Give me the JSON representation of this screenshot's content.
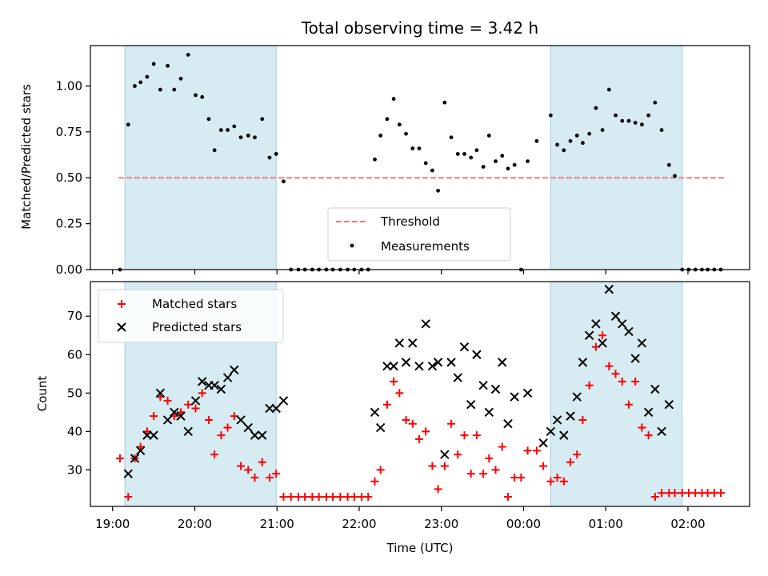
{
  "chart_data": [
    {
      "type": "scatter",
      "title": "Total observing time = 3.42 h",
      "xlabel": "",
      "ylabel": "Matched/Predicted stars",
      "ylim": [
        0,
        1.22
      ],
      "yticks": [
        "0.00",
        "0.25",
        "0.50",
        "0.75",
        "1.00"
      ],
      "shaded_spans": [
        [
          19.15,
          20.99
        ],
        [
          24.33,
          25.93
        ]
      ],
      "threshold": {
        "name": "Threshold",
        "y": 0.5,
        "x": [
          19.07,
          26.45
        ],
        "color": "#f08080"
      },
      "legend": {
        "placement": "lower-center",
        "entries": [
          "Threshold",
          "Measurements"
        ]
      },
      "series": [
        {
          "name": "Measurements",
          "color": "#000000",
          "points": [
            [
              19.09,
              0.0
            ],
            [
              19.19,
              0.79
            ],
            [
              19.27,
              1.0
            ],
            [
              19.34,
              1.02
            ],
            [
              19.42,
              1.05
            ],
            [
              19.5,
              1.12
            ],
            [
              19.58,
              0.98
            ],
            [
              19.67,
              1.11
            ],
            [
              19.75,
              0.98
            ],
            [
              19.83,
              1.04
            ],
            [
              19.92,
              1.17
            ],
            [
              20.01,
              0.95
            ],
            [
              20.09,
              0.94
            ],
            [
              20.17,
              0.82
            ],
            [
              20.24,
              0.65
            ],
            [
              20.32,
              0.76
            ],
            [
              20.4,
              0.76
            ],
            [
              20.48,
              0.78
            ],
            [
              20.56,
              0.72
            ],
            [
              20.65,
              0.73
            ],
            [
              20.73,
              0.72
            ],
            [
              20.82,
              0.82
            ],
            [
              20.91,
              0.61
            ],
            [
              20.99,
              0.63
            ],
            [
              21.08,
              0.48
            ],
            [
              21.17,
              0.0
            ],
            [
              21.26,
              0.0
            ],
            [
              21.34,
              0.0
            ],
            [
              21.43,
              0.0
            ],
            [
              21.51,
              0.0
            ],
            [
              21.6,
              0.0
            ],
            [
              21.68,
              0.0
            ],
            [
              21.77,
              0.0
            ],
            [
              21.86,
              0.0
            ],
            [
              21.94,
              0.0
            ],
            [
              22.03,
              0.0
            ],
            [
              22.11,
              0.0
            ],
            [
              22.19,
              0.6
            ],
            [
              22.26,
              0.73
            ],
            [
              22.34,
              0.82
            ],
            [
              22.42,
              0.93
            ],
            [
              22.49,
              0.79
            ],
            [
              22.57,
              0.74
            ],
            [
              22.65,
              0.66
            ],
            [
              22.73,
              0.66
            ],
            [
              22.81,
              0.58
            ],
            [
              22.89,
              0.54
            ],
            [
              22.96,
              0.43
            ],
            [
              23.04,
              0.91
            ],
            [
              23.12,
              0.72
            ],
            [
              23.2,
              0.63
            ],
            [
              23.28,
              0.63
            ],
            [
              23.36,
              0.61
            ],
            [
              23.43,
              0.65
            ],
            [
              23.51,
              0.56
            ],
            [
              23.58,
              0.73
            ],
            [
              23.66,
              0.59
            ],
            [
              23.74,
              0.62
            ],
            [
              23.81,
              0.55
            ],
            [
              23.89,
              0.57
            ],
            [
              23.97,
              0.0
            ],
            [
              24.05,
              0.59
            ],
            [
              24.16,
              0.7
            ],
            [
              24.33,
              0.84
            ],
            [
              24.41,
              0.68
            ],
            [
              24.49,
              0.65
            ],
            [
              24.57,
              0.7
            ],
            [
              24.65,
              0.73
            ],
            [
              24.72,
              0.69
            ],
            [
              24.8,
              0.74
            ],
            [
              24.88,
              0.88
            ],
            [
              24.96,
              0.76
            ],
            [
              25.04,
              0.98
            ],
            [
              25.12,
              0.84
            ],
            [
              25.2,
              0.81
            ],
            [
              25.28,
              0.81
            ],
            [
              25.36,
              0.8
            ],
            [
              25.44,
              0.79
            ],
            [
              25.52,
              0.84
            ],
            [
              25.6,
              0.91
            ],
            [
              25.68,
              0.76
            ],
            [
              25.77,
              0.57
            ],
            [
              25.84,
              0.51
            ],
            [
              25.93,
              0.0
            ],
            [
              26.01,
              0.0
            ],
            [
              26.09,
              0.0
            ],
            [
              26.17,
              0.0
            ],
            [
              26.24,
              0.0
            ],
            [
              26.32,
              0.0
            ],
            [
              26.4,
              0.0
            ]
          ]
        }
      ]
    },
    {
      "type": "scatter",
      "title": "",
      "xlabel": "Time (UTC)",
      "ylabel": "Count",
      "ylim": [
        20.5,
        79
      ],
      "yticks": [
        "30",
        "40",
        "50",
        "60",
        "70"
      ],
      "xticks": [
        "19:00",
        "20:00",
        "21:00",
        "22:00",
        "23:00",
        "00:00",
        "01:00",
        "02:00"
      ],
      "shaded_spans": [
        [
          19.15,
          20.99
        ],
        [
          24.33,
          25.93
        ]
      ],
      "legend": {
        "placement": "upper-left",
        "entries": [
          "Matched stars",
          "Predicted stars"
        ]
      },
      "series": [
        {
          "name": "Matched stars",
          "color": "#ff0000",
          "marker": "plus",
          "points": [
            [
              19.09,
              33
            ],
            [
              19.19,
              23
            ],
            [
              19.27,
              33
            ],
            [
              19.34,
              36
            ],
            [
              19.42,
              40
            ],
            [
              19.5,
              44
            ],
            [
              19.58,
              49
            ],
            [
              19.67,
              48
            ],
            [
              19.75,
              44
            ],
            [
              19.83,
              45
            ],
            [
              19.92,
              47
            ],
            [
              20.01,
              46
            ],
            [
              20.09,
              50
            ],
            [
              20.17,
              43
            ],
            [
              20.24,
              34
            ],
            [
              20.32,
              39
            ],
            [
              20.4,
              41
            ],
            [
              20.48,
              44
            ],
            [
              20.56,
              31
            ],
            [
              20.65,
              30
            ],
            [
              20.73,
              28
            ],
            [
              20.82,
              32
            ],
            [
              20.91,
              28
            ],
            [
              20.99,
              29
            ],
            [
              21.08,
              23
            ],
            [
              21.17,
              23
            ],
            [
              21.26,
              23
            ],
            [
              21.34,
              23
            ],
            [
              21.43,
              23
            ],
            [
              21.51,
              23
            ],
            [
              21.6,
              23
            ],
            [
              21.68,
              23
            ],
            [
              21.77,
              23
            ],
            [
              21.86,
              23
            ],
            [
              21.94,
              23
            ],
            [
              22.03,
              23
            ],
            [
              22.11,
              23
            ],
            [
              22.19,
              27
            ],
            [
              22.26,
              30
            ],
            [
              22.34,
              47
            ],
            [
              22.42,
              53
            ],
            [
              22.49,
              50
            ],
            [
              22.57,
              43
            ],
            [
              22.65,
              42
            ],
            [
              22.73,
              38
            ],
            [
              22.81,
              40
            ],
            [
              22.89,
              31
            ],
            [
              22.96,
              25
            ],
            [
              23.04,
              31
            ],
            [
              23.12,
              42
            ],
            [
              23.2,
              34
            ],
            [
              23.28,
              39
            ],
            [
              23.36,
              29
            ],
            [
              23.43,
              39
            ],
            [
              23.51,
              29
            ],
            [
              23.58,
              33
            ],
            [
              23.66,
              30
            ],
            [
              23.74,
              36
            ],
            [
              23.81,
              23
            ],
            [
              23.89,
              28
            ],
            [
              23.97,
              28
            ],
            [
              24.05,
              35
            ],
            [
              24.16,
              35
            ],
            [
              24.24,
              31
            ],
            [
              24.33,
              27
            ],
            [
              24.41,
              28
            ],
            [
              24.49,
              27
            ],
            [
              24.57,
              32
            ],
            [
              24.65,
              34
            ],
            [
              24.72,
              43
            ],
            [
              24.8,
              52
            ],
            [
              24.88,
              62
            ],
            [
              24.96,
              65
            ],
            [
              25.04,
              57
            ],
            [
              25.12,
              55
            ],
            [
              25.2,
              53
            ],
            [
              25.28,
              47
            ],
            [
              25.36,
              53
            ],
            [
              25.44,
              41
            ],
            [
              25.52,
              39
            ],
            [
              25.6,
              23
            ],
            [
              25.68,
              24
            ],
            [
              25.77,
              24
            ],
            [
              25.84,
              24
            ],
            [
              25.93,
              24
            ],
            [
              26.01,
              24
            ],
            [
              26.09,
              24
            ],
            [
              26.17,
              24
            ],
            [
              26.24,
              24
            ],
            [
              26.32,
              24
            ],
            [
              26.4,
              24
            ]
          ]
        },
        {
          "name": "Predicted stars",
          "color": "#000000",
          "marker": "x",
          "points": [
            [
              19.19,
              29
            ],
            [
              19.27,
              33
            ],
            [
              19.34,
              35
            ],
            [
              19.42,
              39
            ],
            [
              19.5,
              39
            ],
            [
              19.58,
              50
            ],
            [
              19.67,
              43
            ],
            [
              19.75,
              45
            ],
            [
              19.83,
              44
            ],
            [
              19.92,
              40
            ],
            [
              20.01,
              48
            ],
            [
              20.09,
              53
            ],
            [
              20.17,
              52
            ],
            [
              20.24,
              52
            ],
            [
              20.32,
              51
            ],
            [
              20.4,
              54
            ],
            [
              20.48,
              56
            ],
            [
              20.56,
              43
            ],
            [
              20.65,
              41
            ],
            [
              20.73,
              39
            ],
            [
              20.82,
              39
            ],
            [
              20.91,
              46
            ],
            [
              20.99,
              46
            ],
            [
              21.08,
              48
            ],
            [
              22.19,
              45
            ],
            [
              22.26,
              41
            ],
            [
              22.34,
              57
            ],
            [
              22.42,
              57
            ],
            [
              22.49,
              63
            ],
            [
              22.57,
              58
            ],
            [
              22.65,
              63
            ],
            [
              22.73,
              57
            ],
            [
              22.81,
              68
            ],
            [
              22.89,
              57
            ],
            [
              22.96,
              58
            ],
            [
              23.04,
              34
            ],
            [
              23.12,
              58
            ],
            [
              23.2,
              54
            ],
            [
              23.28,
              62
            ],
            [
              23.36,
              47
            ],
            [
              23.43,
              60
            ],
            [
              23.51,
              52
            ],
            [
              23.58,
              45
            ],
            [
              23.66,
              51
            ],
            [
              23.74,
              58
            ],
            [
              23.81,
              42
            ],
            [
              23.89,
              49
            ],
            [
              24.05,
              50
            ],
            [
              24.24,
              37
            ],
            [
              24.33,
              40
            ],
            [
              24.41,
              43
            ],
            [
              24.49,
              39
            ],
            [
              24.57,
              44
            ],
            [
              24.65,
              49
            ],
            [
              24.72,
              58
            ],
            [
              24.8,
              65
            ],
            [
              24.88,
              68
            ],
            [
              24.96,
              63
            ],
            [
              25.04,
              77
            ],
            [
              25.12,
              70
            ],
            [
              25.2,
              68
            ],
            [
              25.28,
              66
            ],
            [
              25.36,
              59
            ],
            [
              25.44,
              63
            ],
            [
              25.52,
              45
            ],
            [
              25.6,
              51
            ],
            [
              25.68,
              40
            ],
            [
              25.77,
              47
            ]
          ]
        }
      ]
    }
  ]
}
